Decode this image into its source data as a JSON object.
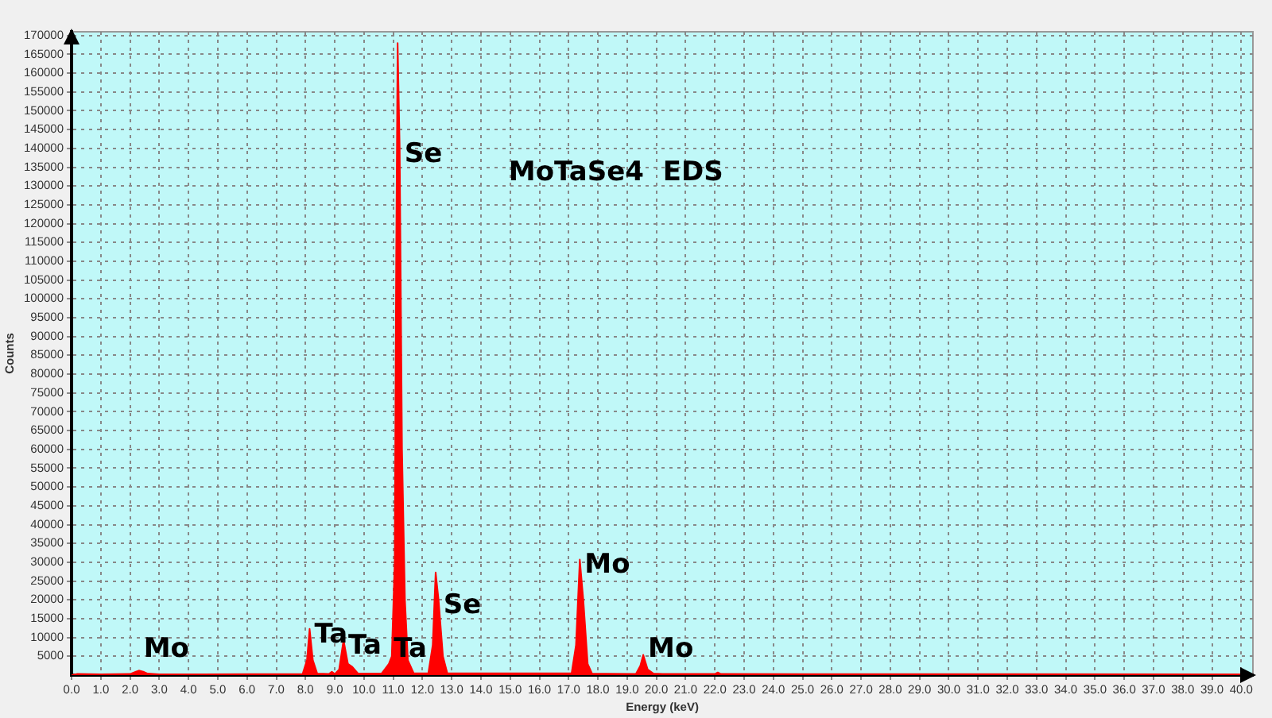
{
  "chart_data": {
    "type": "area",
    "title": "MoTaSe4  EDS",
    "xlabel": "Energy (keV)",
    "ylabel": "Counts",
    "x": [
      0.0,
      0.2,
      1.0,
      2.0,
      2.2,
      2.3,
      2.45,
      2.6,
      3.0,
      7.9,
      8.05,
      8.14,
      8.25,
      8.4,
      8.8,
      8.9,
      9.0,
      9.15,
      9.3,
      9.45,
      9.6,
      9.8,
      10.6,
      10.85,
      10.95,
      11.05,
      11.1,
      11.15,
      11.22,
      11.3,
      11.4,
      11.5,
      11.7,
      12.2,
      12.35,
      12.45,
      12.55,
      12.7,
      12.85,
      17.1,
      17.25,
      17.38,
      17.5,
      17.65,
      17.8,
      19.3,
      19.45,
      19.55,
      19.7,
      19.9,
      20.2,
      22.0,
      22.1,
      22.2,
      40.4
    ],
    "series": [
      {
        "color": "#ff0000",
        "values": [
          0,
          300,
          200,
          300,
          900,
          1200,
          900,
          400,
          200,
          300,
          4000,
          12300,
          4000,
          400,
          300,
          900,
          300,
          1500,
          9300,
          3000,
          2200,
          400,
          400,
          3000,
          5000,
          30000,
          110000,
          168000,
          140000,
          60000,
          20000,
          4000,
          500,
          500,
          8000,
          27300,
          20000,
          5000,
          500,
          500,
          8000,
          30700,
          20000,
          3000,
          400,
          300,
          2500,
          5400,
          1500,
          400,
          300,
          300,
          700,
          300,
          200
        ]
      }
    ],
    "xlim": [
      0,
      40.4
    ],
    "ylim": [
      0,
      171000
    ],
    "xticks": [
      {
        "value": 0,
        "label": "0.0"
      },
      {
        "value": 1,
        "label": "1.0"
      },
      {
        "value": 2,
        "label": "2.0"
      },
      {
        "value": 3,
        "label": "3.0"
      },
      {
        "value": 4,
        "label": "4.0"
      },
      {
        "value": 5,
        "label": "5.0"
      },
      {
        "value": 6,
        "label": "6.0"
      },
      {
        "value": 7,
        "label": "7.0"
      },
      {
        "value": 8,
        "label": "8.0"
      },
      {
        "value": 9,
        "label": "9.0"
      },
      {
        "value": 10,
        "label": "10.0"
      },
      {
        "value": 11,
        "label": "11.0"
      },
      {
        "value": 12,
        "label": "12.0"
      },
      {
        "value": 13,
        "label": "13.0"
      },
      {
        "value": 14,
        "label": "14.0"
      },
      {
        "value": 15,
        "label": "15.0"
      },
      {
        "value": 16,
        "label": "16.0"
      },
      {
        "value": 17,
        "label": "17.0"
      },
      {
        "value": 18,
        "label": "18.0"
      },
      {
        "value": 19,
        "label": "19.0"
      },
      {
        "value": 20,
        "label": "20.0"
      },
      {
        "value": 21,
        "label": "21.0"
      },
      {
        "value": 22,
        "label": "22.0"
      },
      {
        "value": 23,
        "label": "23.0"
      },
      {
        "value": 24,
        "label": "24.0"
      },
      {
        "value": 25,
        "label": "25.0"
      },
      {
        "value": 26,
        "label": "26.0"
      },
      {
        "value": 27,
        "label": "27.0"
      },
      {
        "value": 28,
        "label": "28.0"
      },
      {
        "value": 29,
        "label": "29.0"
      },
      {
        "value": 30,
        "label": "30.0"
      },
      {
        "value": 31,
        "label": "31.0"
      },
      {
        "value": 32,
        "label": "32.0"
      },
      {
        "value": 33,
        "label": "33.0"
      },
      {
        "value": 34,
        "label": "34.0"
      },
      {
        "value": 35,
        "label": "35.0"
      },
      {
        "value": 36,
        "label": "36.0"
      },
      {
        "value": 37,
        "label": "37.0"
      },
      {
        "value": 38,
        "label": "38.0"
      },
      {
        "value": 39,
        "label": "39.0"
      },
      {
        "value": 40,
        "label": "40.0"
      }
    ],
    "yticks": [
      5000,
      10000,
      15000,
      20000,
      25000,
      30000,
      35000,
      40000,
      45000,
      50000,
      55000,
      60000,
      65000,
      70000,
      75000,
      80000,
      85000,
      90000,
      95000,
      100000,
      105000,
      110000,
      115000,
      120000,
      125000,
      130000,
      135000,
      140000,
      145000,
      150000,
      155000,
      160000,
      165000,
      170000
    ],
    "grid": true,
    "legend": false,
    "marker": "none",
    "line_style": "solid",
    "annotations": [
      {
        "text": "Se",
        "x": 11.22,
        "y": 140000
      },
      {
        "text": "Se",
        "x": 12.55,
        "y": 20000
      },
      {
        "text": "Mo",
        "x": 17.38,
        "y": 30700
      },
      {
        "text": "Mo",
        "x": 19.55,
        "y": 5400
      },
      {
        "text": "Ta",
        "x": 8.14,
        "y": 12300
      },
      {
        "text": "Ta",
        "x": 9.3,
        "y": 9300
      },
      {
        "text": "Ta",
        "x": 10.85,
        "y": 3000
      },
      {
        "text": "Mo",
        "x": 2.3,
        "y": 1200
      }
    ]
  }
}
